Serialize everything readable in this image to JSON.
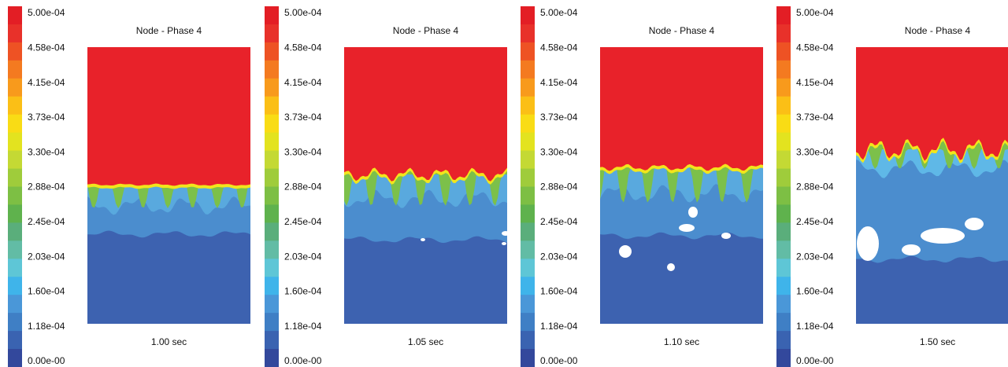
{
  "panels": [
    {
      "legend_labels": [
        "5.00e-04",
        "4.58e-04",
        "4.15e-04",
        "3.73e-04",
        "3.30e-04",
        "2.88e-04",
        "2.45e-04",
        "2.03e-04",
        "1.60e-04",
        "1.18e-04",
        "0.00e-00"
      ],
      "title": "Node - Phase 4",
      "time": "1.00 sec"
    },
    {
      "legend_labels": [
        "5.00e-04",
        "4.58e-04",
        "4.15e-04",
        "3.73e-04",
        "3.30e-04",
        "2.88e-04",
        "2.45e-04",
        "2.03e-04",
        "1.60e-04",
        "1.18e-04",
        "0.00e-00"
      ],
      "title": "Node - Phase 4",
      "time": "1.05 sec"
    },
    {
      "legend_labels": [
        "5.00e-04",
        "4.58e-04",
        "4.15e-04",
        "3.73e-04",
        "3.30e-04",
        "2.88e-04",
        "2.45e-04",
        "2.03e-04",
        "1.60e-04",
        "1.18e-04",
        "0.00e-00"
      ],
      "title": "Node - Phase 4",
      "time": "1.10 sec"
    },
    {
      "legend_labels": [
        "5.00e-04",
        "4.58e-04",
        "4.15e-04",
        "3.73e-04",
        "3.30e-04",
        "2.88e-04",
        "2.45e-04",
        "2.03e-04",
        "1.60e-04",
        "1.18e-04",
        "0.00e-00"
      ],
      "title": "Node - Phase 4",
      "time": "1.50 sec"
    }
  ]
}
